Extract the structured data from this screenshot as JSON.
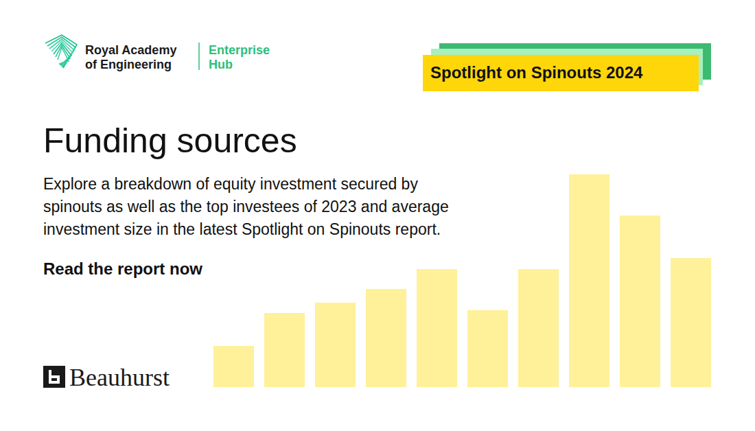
{
  "logo": {
    "lines": [
      "Royal Academy",
      "of Engineering"
    ],
    "hub_lines": [
      "Enterprise",
      "Hub"
    ]
  },
  "badge": "Spotlight on Spinouts 2024",
  "headline": "Funding sources",
  "body": [
    "Explore a breakdown of equity investment secured by",
    "spinouts as well as the top investees of 2023 and average",
    "investment size in the latest Spotlight on Spinouts report."
  ],
  "cta": "Read the report now",
  "partner": "Beauhurst",
  "chart_data": {
    "type": "bar",
    "categories": [
      null,
      null,
      null,
      null,
      null,
      null,
      null,
      null,
      null,
      null
    ],
    "values": [
      60,
      108,
      123,
      143,
      172,
      112,
      172,
      310,
      250,
      188
    ],
    "color": "#fff09a",
    "ylim": [
      0,
      310
    ],
    "tick_labels": false
  }
}
